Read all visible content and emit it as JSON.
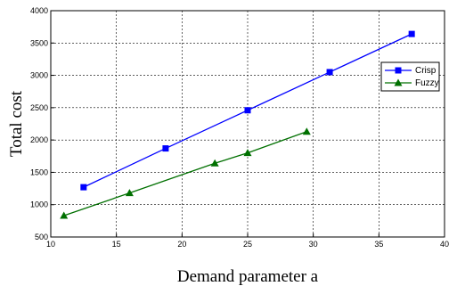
{
  "chart_data": {
    "type": "line",
    "xlabel": "Demand parameter a",
    "ylabel": "Total cost",
    "xlim": [
      10,
      40
    ],
    "ylim": [
      500,
      4000
    ],
    "xticks": [
      10,
      15,
      20,
      25,
      30,
      35,
      40
    ],
    "yticks": [
      500,
      1000,
      1500,
      2000,
      2500,
      3000,
      3500,
      4000
    ],
    "grid": true,
    "legend_position": "top-right",
    "series": [
      {
        "name": "Crisp",
        "color": "#0000ff",
        "marker": "square",
        "points": [
          [
            12.5,
            1270
          ],
          [
            18.75,
            1870
          ],
          [
            25,
            2460
          ],
          [
            31.25,
            3050
          ],
          [
            37.5,
            3640
          ]
        ]
      },
      {
        "name": "Fuzzy",
        "color": "#007000",
        "marker": "triangle",
        "points": [
          [
            11,
            830
          ],
          [
            16,
            1180
          ],
          [
            22.5,
            1640
          ],
          [
            25,
            1800
          ],
          [
            29.5,
            2130
          ]
        ]
      }
    ]
  }
}
